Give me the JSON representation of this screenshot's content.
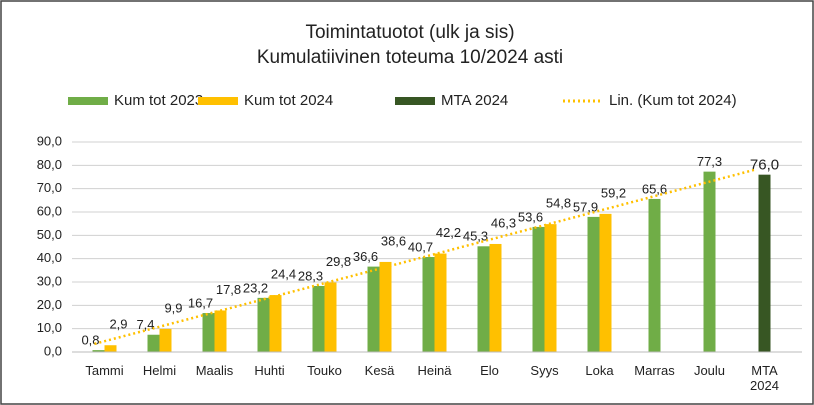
{
  "chart_data": {
    "type": "bar",
    "title": "Toimintatuotot (ulk ja sis)",
    "subtitle": "Kumulatiivinen  toteuma 10/2024 asti",
    "categories": [
      "Tammi",
      "Helmi",
      "Maalis",
      "Huhti",
      "Touko",
      "Kesä",
      "Heinä",
      "Elo",
      "Syys",
      "Loka",
      "Marras",
      "Joulu",
      "MTA 2024"
    ],
    "series": [
      {
        "name": "Kum tot 2023",
        "color": "#70ad47",
        "values": [
          0.8,
          7.4,
          16.7,
          23.2,
          28.3,
          36.6,
          40.7,
          45.3,
          53.6,
          57.9,
          65.6,
          77.3,
          null
        ],
        "value_labels": [
          "0,8",
          "7,4",
          "16,7",
          "23,2",
          "28,3",
          "36,6",
          "40,7",
          "45,3",
          "53,6",
          "57,9",
          "65,6",
          "77,3",
          null
        ]
      },
      {
        "name": "Kum tot 2024",
        "color": "#ffc000",
        "values": [
          2.9,
          9.9,
          17.8,
          24.4,
          29.8,
          38.6,
          42.2,
          46.3,
          54.8,
          59.2,
          null,
          null,
          null
        ],
        "value_labels": [
          "2,9",
          "9,9",
          "17,8",
          "24,4",
          "29,8",
          "38,6",
          "42,2",
          "46,3",
          "54,8",
          "59,2",
          null,
          null,
          null
        ],
        "trendline": {
          "name": "Lin. (Kum tot 2024)",
          "color": "#ffc000",
          "type": "linear"
        }
      },
      {
        "name": "MTA 2024",
        "color": "#375623",
        "values": [
          null,
          null,
          null,
          null,
          null,
          null,
          null,
          null,
          null,
          null,
          null,
          null,
          76.0
        ],
        "value_labels": [
          null,
          null,
          null,
          null,
          null,
          null,
          null,
          null,
          null,
          null,
          null,
          null,
          "76,0"
        ]
      }
    ],
    "ylim": [
      0,
      90
    ],
    "yticks": [
      {
        "value": 0,
        "label": "0,0"
      },
      {
        "value": 10,
        "label": "10,0"
      },
      {
        "value": 20,
        "label": "20,0"
      },
      {
        "value": 30,
        "label": "30,0"
      },
      {
        "value": 40,
        "label": "40,0"
      },
      {
        "value": 50,
        "label": "50,0"
      },
      {
        "value": 60,
        "label": "60,0"
      },
      {
        "value": 70,
        "label": "70,0"
      },
      {
        "value": 80,
        "label": "80,0"
      },
      {
        "value": 90,
        "label": "90,0"
      }
    ],
    "grid": true,
    "legend": "top"
  }
}
